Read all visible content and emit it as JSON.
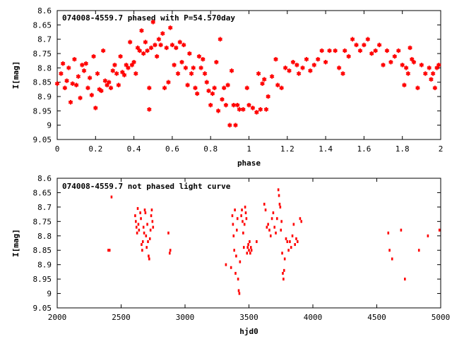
{
  "colors": {
    "points": "#ff0000",
    "axes": "#000000",
    "background": "#ffffff"
  },
  "chart_data": [
    {
      "type": "scatter",
      "title": "074008-4559.7 phased with P=54.570day",
      "xlabel": "phase",
      "ylabel": "I[mag]",
      "xlim": [
        0,
        2
      ],
      "ylim": [
        8.6,
        9.05
      ],
      "y_inverted": true,
      "grid": false,
      "legend": "none",
      "marker": "asterisk",
      "xticks": [
        "0",
        "0.2",
        "0.4",
        "0.6",
        "0.8",
        "1",
        "1.2",
        "1.4",
        "1.6",
        "1.8",
        "2"
      ],
      "yticks": [
        "8.6",
        "8.65",
        "8.7",
        "8.75",
        "8.8",
        "8.85",
        "8.9",
        "8.95",
        "9",
        "9.05"
      ],
      "points": [
        [
          0.0,
          8.855
        ],
        [
          0.02,
          8.82
        ],
        [
          0.03,
          8.785
        ],
        [
          0.04,
          8.87
        ],
        [
          0.05,
          8.845
        ],
        [
          0.06,
          8.8
        ],
        [
          0.07,
          8.92
        ],
        [
          0.08,
          8.855
        ],
        [
          0.09,
          8.77
        ],
        [
          0.1,
          8.86
        ],
        [
          0.11,
          8.83
        ],
        [
          0.12,
          8.905
        ],
        [
          0.13,
          8.79
        ],
        [
          0.14,
          8.81
        ],
        [
          0.15,
          8.785
        ],
        [
          0.16,
          8.87
        ],
        [
          0.17,
          8.835
        ],
        [
          0.18,
          8.895
        ],
        [
          0.19,
          8.76
        ],
        [
          0.2,
          8.94
        ],
        [
          0.21,
          8.82
        ],
        [
          0.22,
          8.875
        ],
        [
          0.23,
          8.88
        ],
        [
          0.24,
          8.74
        ],
        [
          0.25,
          8.845
        ],
        [
          0.26,
          8.86
        ],
        [
          0.27,
          8.85
        ],
        [
          0.28,
          8.87
        ],
        [
          0.29,
          8.81
        ],
        [
          0.3,
          8.79
        ],
        [
          0.31,
          8.82
        ],
        [
          0.32,
          8.86
        ],
        [
          0.33,
          8.76
        ],
        [
          0.34,
          8.815
        ],
        [
          0.35,
          8.825
        ],
        [
          0.36,
          8.79
        ],
        [
          0.37,
          8.8
        ],
        [
          0.38,
          8.71
        ],
        [
          0.39,
          8.79
        ],
        [
          0.4,
          8.78
        ],
        [
          0.41,
          8.82
        ],
        [
          0.42,
          8.73
        ],
        [
          0.43,
          8.74
        ],
        [
          0.44,
          8.67
        ],
        [
          0.45,
          8.75
        ],
        [
          0.46,
          8.71
        ],
        [
          0.47,
          8.74
        ],
        [
          0.48,
          8.87
        ],
        [
          0.48,
          8.945
        ],
        [
          0.49,
          8.73
        ],
        [
          0.5,
          8.64
        ],
        [
          0.51,
          8.72
        ],
        [
          0.52,
          8.76
        ],
        [
          0.53,
          8.7
        ],
        [
          0.54,
          8.72
        ],
        [
          0.55,
          8.68
        ],
        [
          0.56,
          8.87
        ],
        [
          0.57,
          8.73
        ],
        [
          0.58,
          8.85
        ],
        [
          0.59,
          8.66
        ],
        [
          0.6,
          8.72
        ],
        [
          0.61,
          8.79
        ],
        [
          0.62,
          8.73
        ],
        [
          0.63,
          8.82
        ],
        [
          0.64,
          8.71
        ],
        [
          0.65,
          8.78
        ],
        [
          0.66,
          8.72
        ],
        [
          0.67,
          8.8
        ],
        [
          0.68,
          8.86
        ],
        [
          0.69,
          8.75
        ],
        [
          0.7,
          8.82
        ],
        [
          0.71,
          8.8
        ],
        [
          0.72,
          8.87
        ],
        [
          0.73,
          8.89
        ],
        [
          0.74,
          8.76
        ],
        [
          0.75,
          8.8
        ],
        [
          0.76,
          8.77
        ],
        [
          0.77,
          8.82
        ],
        [
          0.78,
          8.85
        ],
        [
          0.79,
          8.88
        ],
        [
          0.8,
          8.93
        ],
        [
          0.81,
          8.89
        ],
        [
          0.82,
          8.87
        ],
        [
          0.83,
          8.78
        ],
        [
          0.84,
          8.95
        ],
        [
          0.85,
          8.7
        ],
        [
          0.86,
          8.91
        ],
        [
          0.87,
          8.87
        ],
        [
          0.88,
          8.93
        ],
        [
          0.89,
          8.86
        ],
        [
          0.9,
          9.0
        ],
        [
          0.91,
          8.81
        ],
        [
          0.92,
          8.93
        ],
        [
          0.93,
          9.0
        ],
        [
          0.94,
          8.93
        ],
        [
          0.95,
          8.945
        ],
        [
          0.97,
          8.945
        ],
        [
          0.99,
          8.87
        ],
        [
          1.0,
          8.93
        ],
        [
          1.02,
          8.94
        ],
        [
          1.04,
          8.955
        ],
        [
          1.05,
          8.82
        ],
        [
          1.06,
          8.945
        ],
        [
          1.07,
          8.855
        ],
        [
          1.08,
          8.84
        ],
        [
          1.09,
          8.945
        ],
        [
          1.1,
          8.9
        ],
        [
          1.12,
          8.83
        ],
        [
          1.14,
          8.77
        ],
        [
          1.15,
          8.86
        ],
        [
          1.17,
          8.87
        ],
        [
          1.19,
          8.8
        ],
        [
          1.21,
          8.81
        ],
        [
          1.23,
          8.78
        ],
        [
          1.25,
          8.79
        ],
        [
          1.26,
          8.82
        ],
        [
          1.28,
          8.8
        ],
        [
          1.3,
          8.77
        ],
        [
          1.32,
          8.81
        ],
        [
          1.34,
          8.79
        ],
        [
          1.36,
          8.77
        ],
        [
          1.38,
          8.74
        ],
        [
          1.4,
          8.78
        ],
        [
          1.42,
          8.74
        ],
        [
          1.45,
          8.74
        ],
        [
          1.47,
          8.8
        ],
        [
          1.49,
          8.82
        ],
        [
          1.5,
          8.74
        ],
        [
          1.52,
          8.76
        ],
        [
          1.54,
          8.7
        ],
        [
          1.56,
          8.72
        ],
        [
          1.58,
          8.74
        ],
        [
          1.6,
          8.72
        ],
        [
          1.62,
          8.7
        ],
        [
          1.64,
          8.75
        ],
        [
          1.66,
          8.74
        ],
        [
          1.68,
          8.72
        ],
        [
          1.7,
          8.79
        ],
        [
          1.72,
          8.74
        ],
        [
          1.74,
          8.78
        ],
        [
          1.76,
          8.76
        ],
        [
          1.78,
          8.74
        ],
        [
          1.8,
          8.79
        ],
        [
          1.81,
          8.86
        ],
        [
          1.82,
          8.8
        ],
        [
          1.83,
          8.82
        ],
        [
          1.84,
          8.73
        ],
        [
          1.85,
          8.77
        ],
        [
          1.86,
          8.78
        ],
        [
          1.88,
          8.87
        ],
        [
          1.9,
          8.79
        ],
        [
          1.92,
          8.82
        ],
        [
          1.94,
          8.8
        ],
        [
          1.95,
          8.84
        ],
        [
          1.96,
          8.82
        ],
        [
          1.97,
          8.87
        ],
        [
          1.98,
          8.8
        ],
        [
          1.99,
          8.79
        ]
      ]
    },
    {
      "type": "scatter",
      "title": "074008-4559.7 not phased light curve",
      "xlabel": "hjd0",
      "ylabel": "I[mag]",
      "xlim": [
        2000,
        5000
      ],
      "ylim": [
        8.6,
        9.05
      ],
      "y_inverted": true,
      "grid": false,
      "legend": "none",
      "marker": "dot",
      "xticks": [
        "2000",
        "2500",
        "3000",
        "3500",
        "4000",
        "4500",
        "5000"
      ],
      "yticks": [
        "8.6",
        "8.65",
        "8.7",
        "8.75",
        "8.8",
        "8.85",
        "8.9",
        "8.95",
        "9",
        "9.05"
      ],
      "points": [
        [
          2400,
          8.85
        ],
        [
          2410,
          8.85
        ],
        [
          2425,
          8.665
        ],
        [
          2610,
          8.73
        ],
        [
          2615,
          8.75
        ],
        [
          2620,
          8.77
        ],
        [
          2625,
          8.79
        ],
        [
          2630,
          8.705
        ],
        [
          2635,
          8.76
        ],
        [
          2640,
          8.78
        ],
        [
          2650,
          8.72
        ],
        [
          2655,
          8.74
        ],
        [
          2660,
          8.83
        ],
        [
          2665,
          8.85
        ],
        [
          2670,
          8.82
        ],
        [
          2675,
          8.77
        ],
        [
          2680,
          8.79
        ],
        [
          2685,
          8.71
        ],
        [
          2690,
          8.72
        ],
        [
          2695,
          8.8
        ],
        [
          2700,
          8.84
        ],
        [
          2705,
          8.76
        ],
        [
          2710,
          8.82
        ],
        [
          2715,
          8.87
        ],
        [
          2720,
          8.88
        ],
        [
          2725,
          8.81
        ],
        [
          2730,
          8.78
        ],
        [
          2735,
          8.73
        ],
        [
          2740,
          8.71
        ],
        [
          2745,
          8.75
        ],
        [
          2750,
          8.77
        ],
        [
          2870,
          8.79
        ],
        [
          2880,
          8.86
        ],
        [
          2885,
          8.85
        ],
        [
          3320,
          8.9
        ],
        [
          3360,
          8.91
        ],
        [
          3370,
          8.73
        ],
        [
          3375,
          8.76
        ],
        [
          3380,
          8.8
        ],
        [
          3385,
          8.85
        ],
        [
          3390,
          8.71
        ],
        [
          3395,
          8.93
        ],
        [
          3400,
          8.87
        ],
        [
          3405,
          8.78
        ],
        [
          3410,
          8.74
        ],
        [
          3415,
          8.95
        ],
        [
          3420,
          8.99
        ],
        [
          3425,
          9.0
        ],
        [
          3430,
          8.89
        ],
        [
          3440,
          8.73
        ],
        [
          3445,
          8.71
        ],
        [
          3450,
          8.75
        ],
        [
          3455,
          8.79
        ],
        [
          3460,
          8.84
        ],
        [
          3465,
          8.76
        ],
        [
          3470,
          8.7
        ],
        [
          3475,
          8.72
        ],
        [
          3480,
          8.74
        ],
        [
          3485,
          8.86
        ],
        [
          3490,
          8.84
        ],
        [
          3495,
          8.83
        ],
        [
          3500,
          8.85
        ],
        [
          3505,
          8.82
        ],
        [
          3510,
          8.86
        ],
        [
          3515,
          8.84
        ],
        [
          3520,
          8.85
        ],
        [
          3560,
          8.82
        ],
        [
          3620,
          8.69
        ],
        [
          3630,
          8.71
        ],
        [
          3640,
          8.77
        ],
        [
          3650,
          8.76
        ],
        [
          3660,
          8.78
        ],
        [
          3670,
          8.8
        ],
        [
          3680,
          8.74
        ],
        [
          3690,
          8.72
        ],
        [
          3700,
          8.77
        ],
        [
          3710,
          8.79
        ],
        [
          3720,
          8.74
        ],
        [
          3730,
          8.64
        ],
        [
          3735,
          8.66
        ],
        [
          3740,
          8.69
        ],
        [
          3745,
          8.7
        ],
        [
          3750,
          8.78
        ],
        [
          3755,
          8.75
        ],
        [
          3760,
          8.86
        ],
        [
          3765,
          8.93
        ],
        [
          3770,
          8.95
        ],
        [
          3775,
          8.92
        ],
        [
          3780,
          8.88
        ],
        [
          3790,
          8.81
        ],
        [
          3800,
          8.82
        ],
        [
          3810,
          8.85
        ],
        [
          3820,
          8.82
        ],
        [
          3830,
          8.84
        ],
        [
          3840,
          8.8
        ],
        [
          3850,
          8.76
        ],
        [
          3860,
          8.83
        ],
        [
          3870,
          8.81
        ],
        [
          3880,
          8.82
        ],
        [
          3900,
          8.74
        ],
        [
          3910,
          8.75
        ],
        [
          4590,
          8.79
        ],
        [
          4600,
          8.85
        ],
        [
          4620,
          8.88
        ],
        [
          4690,
          8.78
        ],
        [
          4720,
          8.95
        ],
        [
          4830,
          8.85
        ],
        [
          4900,
          8.8
        ],
        [
          4990,
          8.78
        ]
      ]
    }
  ]
}
